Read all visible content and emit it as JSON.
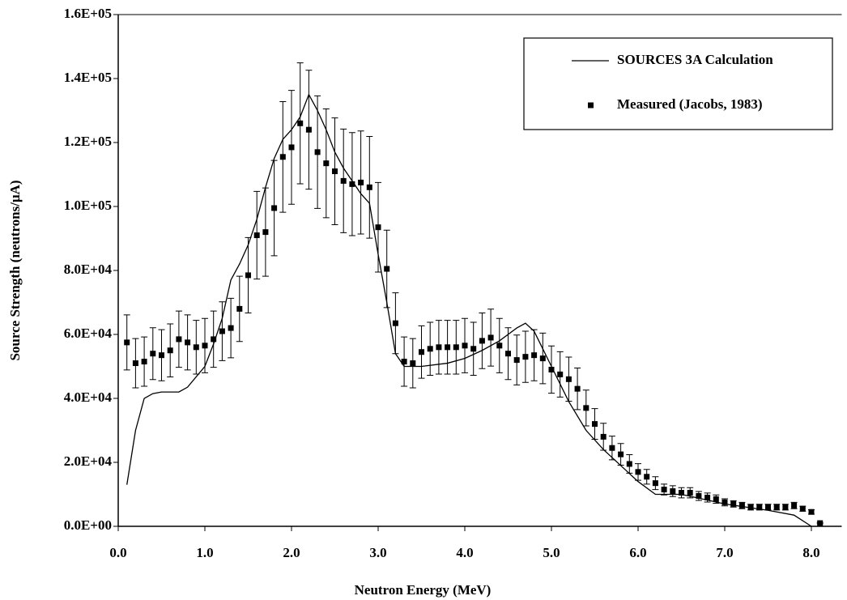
{
  "chart_data": {
    "type": "line",
    "x_label": "Neutron Energy (MeV)",
    "y_label": "Source Strength (neutrons/μA)",
    "xlim": [
      0,
      8.35
    ],
    "ylim": [
      0,
      160000
    ],
    "xticks": [
      {
        "value": 0,
        "label": "0.0"
      },
      {
        "value": 1,
        "label": "1.0"
      },
      {
        "value": 2,
        "label": "2.0"
      },
      {
        "value": 3,
        "label": "3.0"
      },
      {
        "value": 4,
        "label": "4.0"
      },
      {
        "value": 5,
        "label": "5.0"
      },
      {
        "value": 6,
        "label": "6.0"
      },
      {
        "value": 7,
        "label": "7.0"
      },
      {
        "value": 8,
        "label": "8.0"
      }
    ],
    "yticks": [
      {
        "value": 0,
        "label": "0.0E+00"
      },
      {
        "value": 20000,
        "label": "2.0E+04"
      },
      {
        "value": 40000,
        "label": "4.0E+04"
      },
      {
        "value": 60000,
        "label": "6.0E+04"
      },
      {
        "value": 80000,
        "label": "8.0E+04"
      },
      {
        "value": 100000,
        "label": "1.0E+05"
      },
      {
        "value": 120000,
        "label": "1.2E+05"
      },
      {
        "value": 140000,
        "label": "1.4E+05"
      },
      {
        "value": 160000,
        "label": "1.6E+05"
      }
    ],
    "legend": "top-right",
    "series": [
      {
        "name": "SOURCES 3A Calculation",
        "style": "line",
        "color": "#000000",
        "x": [
          0.1,
          0.2,
          0.3,
          0.4,
          0.5,
          0.7,
          0.8,
          1.0,
          1.1,
          1.2,
          1.3,
          1.4,
          1.5,
          1.6,
          1.7,
          1.8,
          1.9,
          2.0,
          2.1,
          2.2,
          2.3,
          2.4,
          2.5,
          2.6,
          2.7,
          2.8,
          2.9,
          3.0,
          3.1,
          3.2,
          3.3,
          3.5,
          3.8,
          4.0,
          4.2,
          4.4,
          4.6,
          4.7,
          4.8,
          5.0,
          5.2,
          5.4,
          5.6,
          5.8,
          6.0,
          6.2,
          6.5,
          7.0,
          7.5,
          7.8,
          8.0
        ],
        "y": [
          13000,
          30000,
          40000,
          41500,
          42000,
          42000,
          43500,
          50000,
          57000,
          65000,
          77000,
          82000,
          88000,
          96000,
          106000,
          115000,
          121000,
          124000,
          128000,
          135000,
          130000,
          124000,
          117000,
          112000,
          108000,
          104000,
          101000,
          85000,
          70000,
          54000,
          50000,
          50000,
          51000,
          52500,
          55000,
          58000,
          62000,
          63500,
          61000,
          50000,
          39000,
          30000,
          24000,
          19000,
          14000,
          10000,
          10000,
          7000,
          5000,
          3500,
          0
        ]
      },
      {
        "name": "Measured (Jacobs, 1983)",
        "style": "points",
        "color": "#000000",
        "x": [
          0.1,
          0.2,
          0.3,
          0.4,
          0.5,
          0.6,
          0.7,
          0.8,
          0.9,
          1.0,
          1.1,
          1.2,
          1.3,
          1.4,
          1.5,
          1.6,
          1.7,
          1.8,
          1.9,
          2.0,
          2.1,
          2.2,
          2.3,
          2.4,
          2.5,
          2.6,
          2.7,
          2.8,
          2.9,
          3.0,
          3.1,
          3.2,
          3.3,
          3.4,
          3.5,
          3.6,
          3.7,
          3.8,
          3.9,
          4.0,
          4.1,
          4.2,
          4.3,
          4.4,
          4.5,
          4.6,
          4.7,
          4.8,
          4.9,
          5.0,
          5.1,
          5.2,
          5.3,
          5.4,
          5.5,
          5.6,
          5.7,
          5.8,
          5.9,
          6.0,
          6.1,
          6.2,
          6.3,
          6.4,
          6.5,
          6.6,
          6.7,
          6.8,
          6.9,
          7.0,
          7.1,
          7.2,
          7.3,
          7.4,
          7.5,
          7.6,
          7.7,
          7.8,
          7.9,
          8.0,
          8.1
        ],
        "y": [
          57500,
          51000,
          51500,
          54000,
          53500,
          55000,
          58500,
          57500,
          56000,
          56500,
          58500,
          61000,
          62000,
          68000,
          78500,
          91000,
          92000,
          99500,
          115500,
          118500,
          126000,
          124000,
          117000,
          113500,
          111000,
          108000,
          107000,
          107500,
          106000,
          93500,
          80500,
          63500,
          51500,
          51000,
          54500,
          55500,
          56000,
          56000,
          56000,
          56500,
          55500,
          58000,
          59000,
          56500,
          54000,
          52000,
          53000,
          53500,
          52500,
          49000,
          47500,
          46000,
          43000,
          37000,
          32000,
          28000,
          24500,
          22500,
          19500,
          17000,
          15500,
          13500,
          11500,
          11000,
          10500,
          10500,
          9500,
          9000,
          8500,
          7500,
          7000,
          6500,
          6000,
          6000,
          6000,
          6000,
          6000,
          6500,
          5500,
          4500,
          1000
        ],
        "errors": [
          8600,
          7700,
          7700,
          8100,
          8000,
          8300,
          8800,
          8600,
          8400,
          8500,
          8800,
          9200,
          9300,
          10200,
          11800,
          13700,
          13800,
          14900,
          17300,
          17800,
          18900,
          18600,
          17600,
          17000,
          16700,
          16200,
          16100,
          16100,
          15900,
          14000,
          12100,
          9500,
          7700,
          7700,
          8200,
          8300,
          8400,
          8400,
          8400,
          8500,
          8300,
          8700,
          8900,
          8500,
          8100,
          7800,
          8000,
          8000,
          7900,
          7400,
          7100,
          6900,
          6500,
          5600,
          4800,
          4200,
          3700,
          3400,
          2900,
          2600,
          2300,
          2000,
          1700,
          1700,
          1600,
          1600,
          1400,
          1400,
          1300,
          1100,
          1000,
          1000,
          900,
          900,
          900,
          900,
          900,
          1000,
          800,
          700,
          200
        ]
      }
    ]
  }
}
